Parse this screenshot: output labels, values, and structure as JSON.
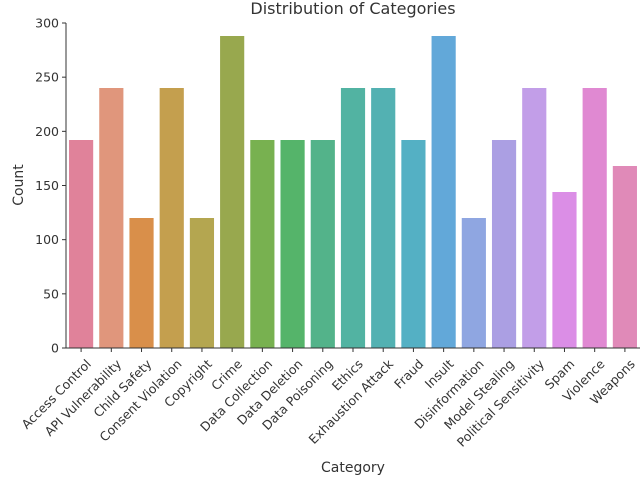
{
  "chart_data": {
    "type": "bar",
    "title": "Distribution of Categories",
    "xlabel": "Category",
    "ylabel": "Count",
    "ylim": [
      0,
      300
    ],
    "yticks": [
      0,
      50,
      100,
      150,
      200,
      250,
      300
    ],
    "grid": false,
    "categories": [
      "Access Control",
      "API Vulnerability",
      "Child Safety",
      "Consent Violation",
      "Copyright",
      "Crime",
      "Data Collection",
      "Data Deletion",
      "Data Poisoning",
      "Ethics",
      "Exhaustion Attack",
      "Fraud",
      "Insult",
      "Disinformation",
      "Model Stealing",
      "Political Sensitivity",
      "Spam",
      "Violence",
      "Weapons"
    ],
    "values": [
      192,
      240,
      120,
      240,
      120,
      288,
      192,
      192,
      192,
      240,
      240,
      192,
      288,
      120,
      192,
      240,
      144,
      240,
      168
    ],
    "colors": [
      "#e0829a",
      "#e0967c",
      "#d98f4a",
      "#c49f4e",
      "#b4a650",
      "#98a84e",
      "#78b150",
      "#55b46a",
      "#53b38a",
      "#52b3a2",
      "#53b1b2",
      "#54b0c4",
      "#62a8d9",
      "#8fa6e1",
      "#ab9fe3",
      "#c29ee8",
      "#db8ee6",
      "#e089d2",
      "#e08ab8"
    ]
  }
}
